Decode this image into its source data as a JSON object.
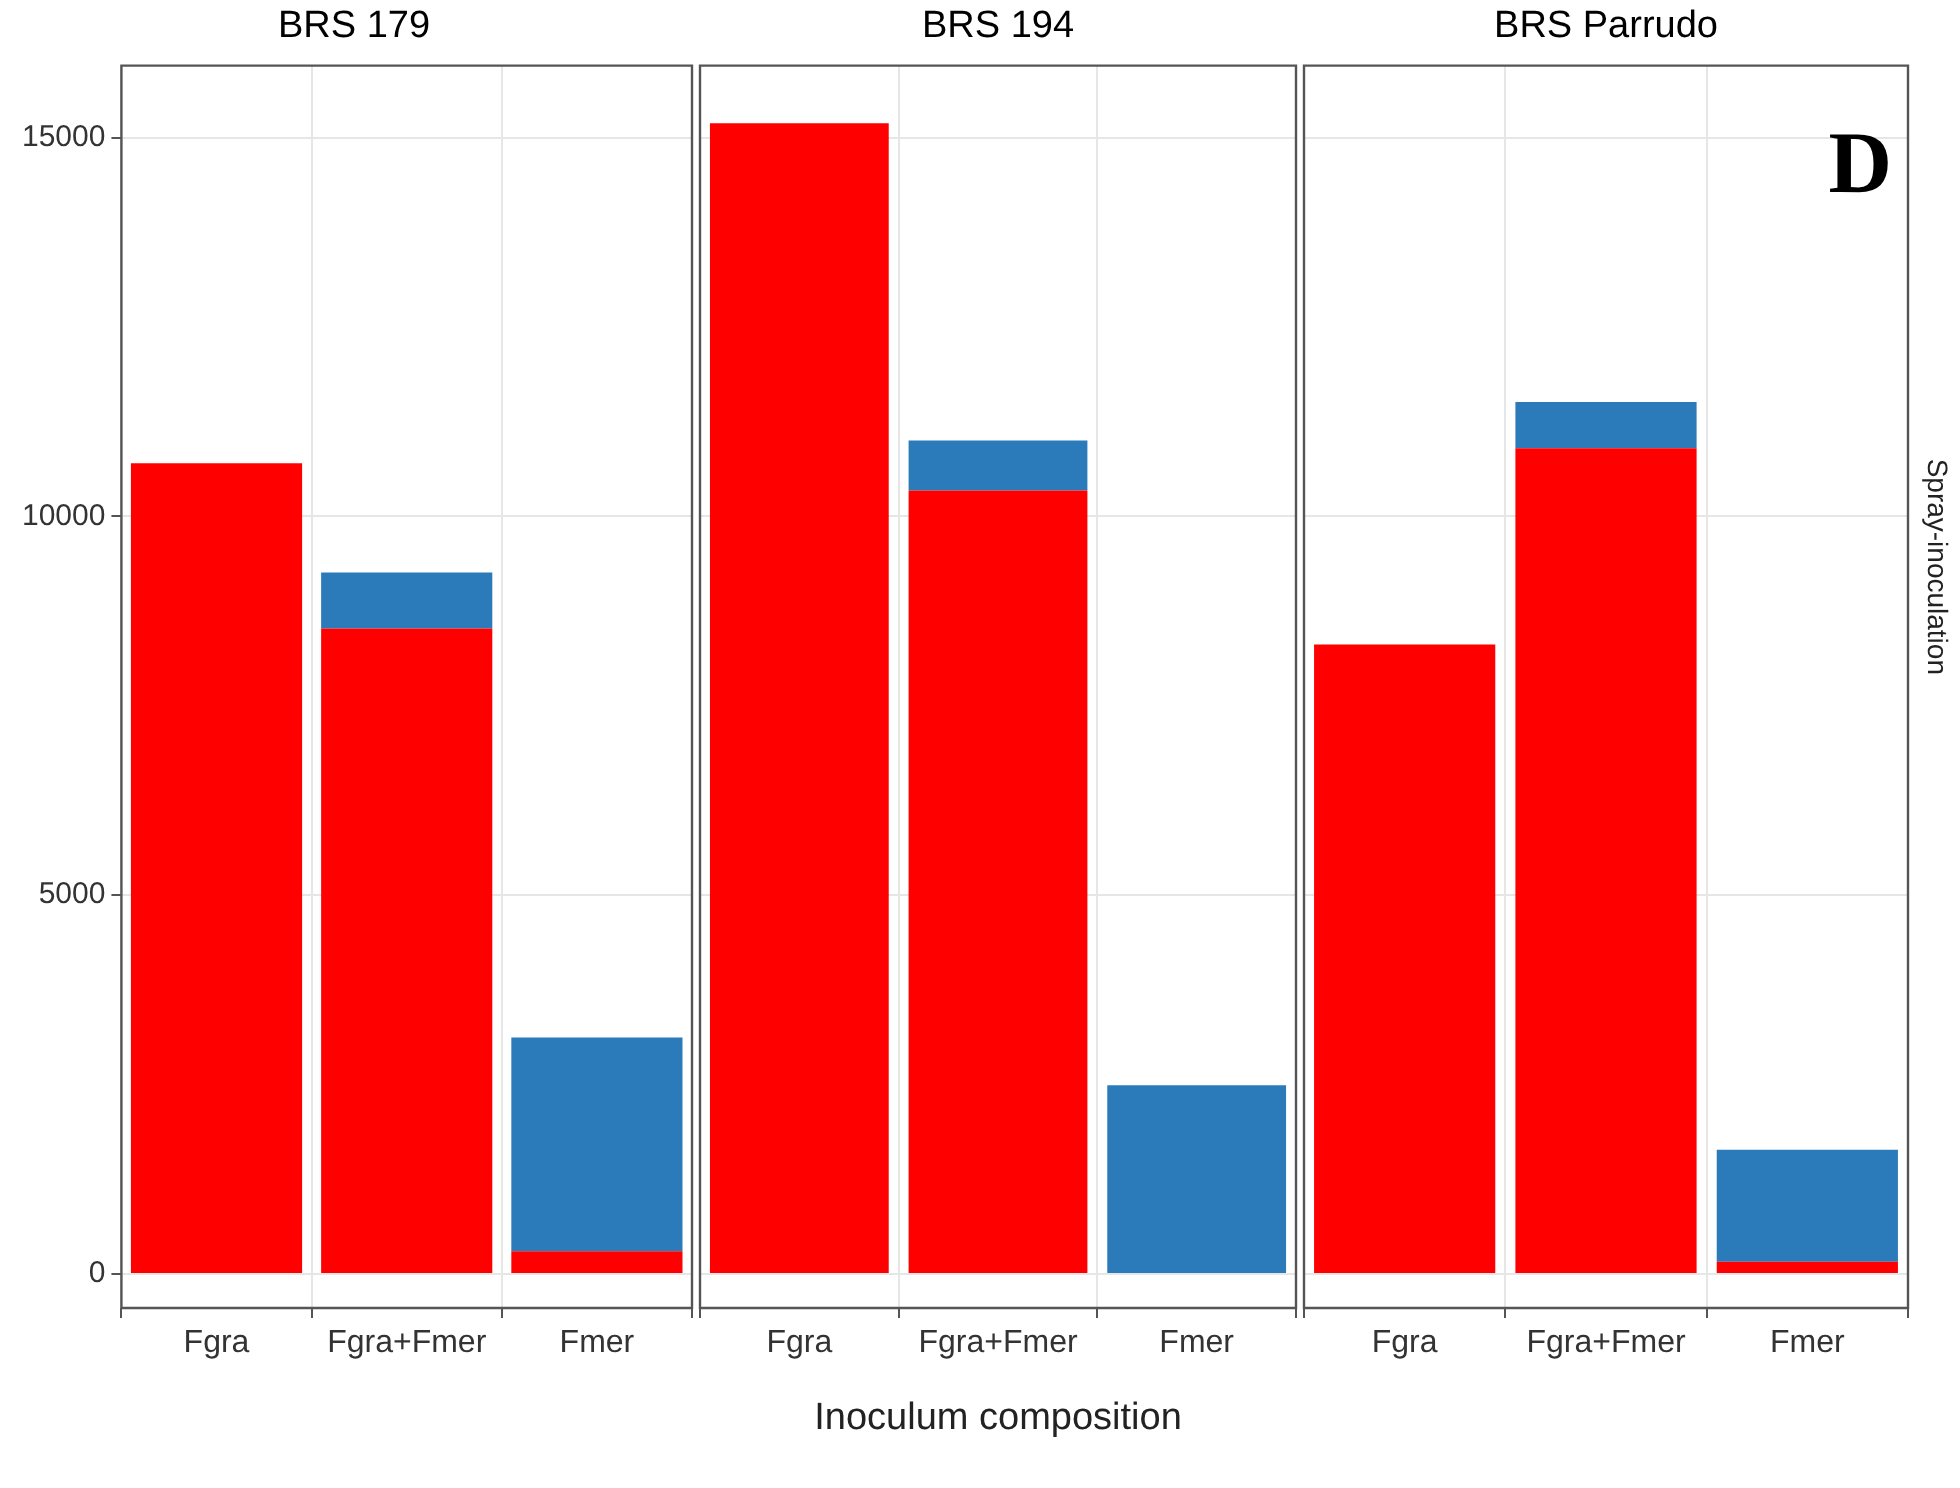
{
  "chart_data": [
    {
      "type": "bar",
      "title": "BRS 179",
      "categories": [
        "Fgra",
        "Fgra+Fmer",
        "Fmer"
      ],
      "stacked": true,
      "grid": true,
      "ylim": [
        -450,
        15950
      ],
      "yticks": [
        0,
        5000,
        10000,
        15000
      ],
      "series": [
        {
          "color": "#ff0000",
          "values": [
            10700,
            8520,
            300
          ]
        },
        {
          "color": "#2b7bba",
          "values": [
            0,
            740,
            2820
          ]
        }
      ]
    },
    {
      "type": "bar",
      "title": "BRS 194",
      "xlabel": "Inoculum composition",
      "categories": [
        "Fgra",
        "Fgra+Fmer",
        "Fmer"
      ],
      "stacked": true,
      "grid": true,
      "ylim": [
        -450,
        15950
      ],
      "yticks": [
        0,
        5000,
        10000,
        15000
      ],
      "tick_labels": "x",
      "series": [
        {
          "color": "#ff0000",
          "values": [
            15190,
            10340,
            0
          ]
        },
        {
          "color": "#2b7bba",
          "values": [
            0,
            660,
            2490
          ]
        }
      ]
    },
    {
      "type": "bar",
      "title": "BRS Parrudo",
      "y2label": "Spray-inoculation",
      "annotations": [
        "D"
      ],
      "categories": [
        "Fgra",
        "Fgra+Fmer",
        "Fmer"
      ],
      "stacked": true,
      "grid": true,
      "ylim": [
        -450,
        15950
      ],
      "yticks": [
        0,
        5000,
        10000,
        15000
      ],
      "tick_labels": "x",
      "series": [
        {
          "color": "#ff0000",
          "values": [
            8310,
            10900,
            160
          ]
        },
        {
          "color": "#2b7bba",
          "values": [
            0,
            610,
            1480
          ]
        }
      ]
    }
  ]
}
